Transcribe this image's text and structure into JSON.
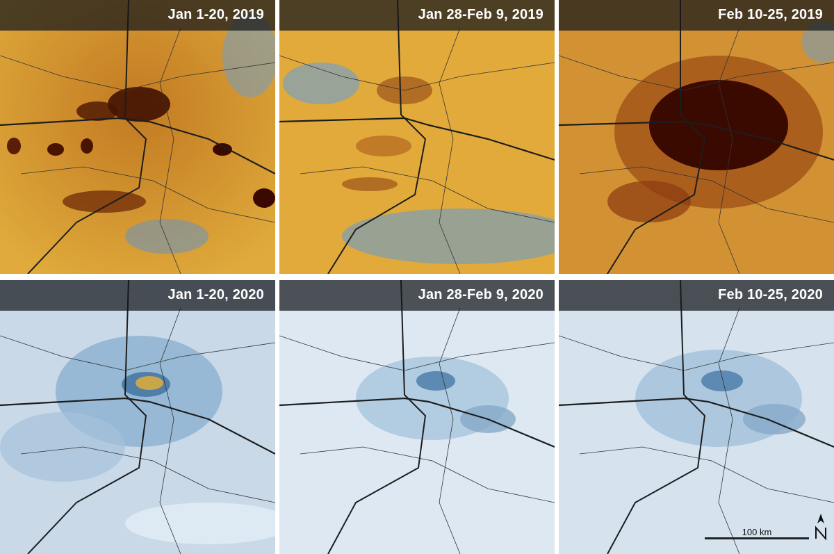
{
  "panels": [
    {
      "label": "Jan 1-20, 2019",
      "year": 2019,
      "palette": "orange",
      "pollution_level": 0.75
    },
    {
      "label": "Jan 28-Feb 9, 2019",
      "year": 2019,
      "palette": "orange",
      "pollution_level": 0.45
    },
    {
      "label": "Feb 10-25, 2019",
      "year": 2019,
      "palette": "orange",
      "pollution_level": 0.95
    },
    {
      "label": "Jan 1-20, 2020",
      "year": 2020,
      "palette": "blue",
      "pollution_level": 0.35
    },
    {
      "label": "Jan 28-Feb 9, 2020",
      "year": 2020,
      "palette": "blue",
      "pollution_level": 0.15
    },
    {
      "label": "Feb 10-25, 2020",
      "year": 2020,
      "palette": "blue",
      "pollution_level": 0.18
    }
  ],
  "scale_bar": {
    "label": "100 km"
  },
  "north_arrow": {
    "icon": "north-arrow-icon"
  },
  "colors": {
    "high_2019": "#3a0a00",
    "mid_2019": "#c8781c",
    "low_2019": "#e3b040",
    "high_2020": "#2f6a9e",
    "low_2020": "#e4edf5",
    "roads": "#1d1d1d"
  }
}
